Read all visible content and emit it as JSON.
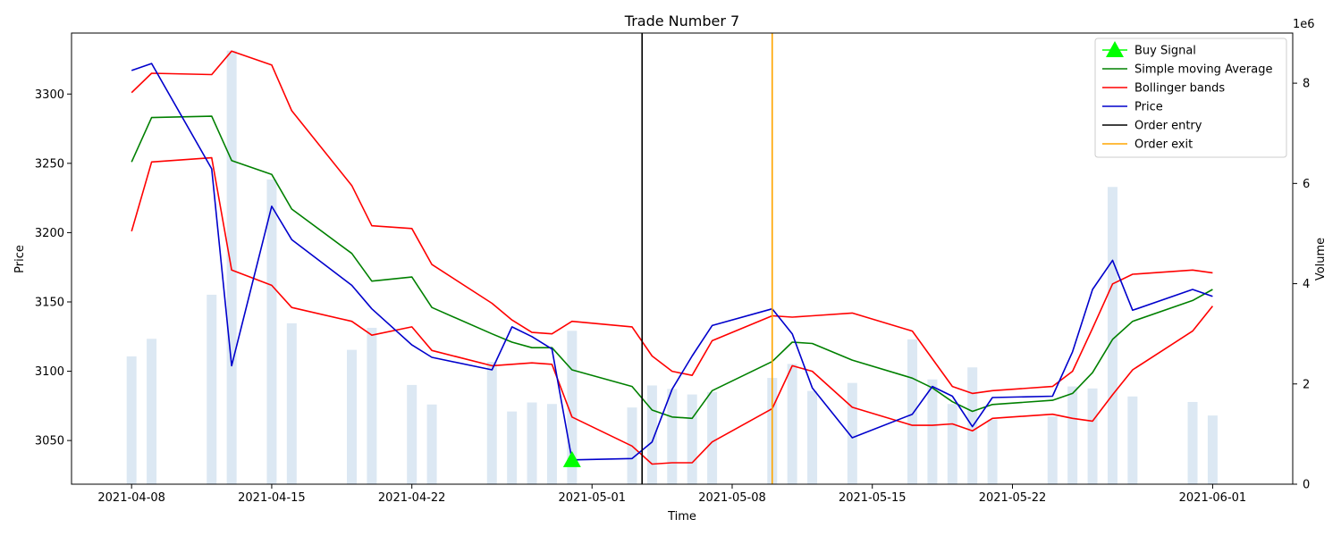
{
  "chart_data": {
    "type": "line",
    "title": "Trade Number 7",
    "xlabel": "Time",
    "ylabel": "Price",
    "y2label": "Volume",
    "y2_offset_label": "1e6",
    "xlim": [
      "2021-04-05",
      "2021-06-05"
    ],
    "ylim": [
      3018.5,
      3344
    ],
    "y2lim": [
      0,
      9000000
    ],
    "x_ticks": [
      "2021-04-08",
      "2021-04-15",
      "2021-04-22",
      "2021-05-01",
      "2021-05-08",
      "2021-05-15",
      "2021-05-22",
      "2021-06-01"
    ],
    "y_ticks": [
      3050,
      3100,
      3150,
      3200,
      3250,
      3300
    ],
    "y2_ticks": [
      0,
      2000000,
      4000000,
      6000000,
      8000000
    ],
    "y2_tick_labels": [
      "0",
      "2",
      "4",
      "6",
      "8"
    ],
    "grid": false,
    "legend_position": "top-right",
    "colors": {
      "price": "#0000cc",
      "sma": "#008000",
      "bollinger": "#ff0000",
      "volume": "#dce8f3",
      "buy": "#00ff00",
      "entry": "#000000",
      "exit": "#ffa500"
    },
    "legend": [
      {
        "label": "Buy Signal",
        "key": "buy",
        "kind": "marker"
      },
      {
        "label": "Simple moving Average",
        "key": "sma",
        "kind": "line"
      },
      {
        "label": "Bollinger bands",
        "key": "bollinger",
        "kind": "line"
      },
      {
        "label": "Price",
        "key": "price",
        "kind": "line"
      },
      {
        "label": "Order entry",
        "key": "entry",
        "kind": "line"
      },
      {
        "label": "Order exit",
        "key": "exit",
        "kind": "line"
      }
    ],
    "dates": [
      "2021-04-08",
      "2021-04-09",
      "2021-04-12",
      "2021-04-13",
      "2021-04-15",
      "2021-04-16",
      "2021-04-19",
      "2021-04-20",
      "2021-04-22",
      "2021-04-23",
      "2021-04-26",
      "2021-04-27",
      "2021-04-28",
      "2021-04-29",
      "2021-04-30",
      "2021-05-03",
      "2021-05-04",
      "2021-05-05",
      "2021-05-06",
      "2021-05-07",
      "2021-05-10",
      "2021-05-11",
      "2021-05-12",
      "2021-05-14",
      "2021-05-17",
      "2021-05-18",
      "2021-05-19",
      "2021-05-20",
      "2021-05-21",
      "2021-05-24",
      "2021-05-25",
      "2021-05-26",
      "2021-05-27",
      "2021-05-28",
      "2021-05-31",
      "2021-06-01"
    ],
    "series": [
      {
        "name": "Price",
        "key": "price",
        "values": [
          3317,
          3322,
          3246,
          3104,
          3219,
          3195,
          3162,
          3145,
          3119,
          3110,
          3101,
          3132,
          3125,
          3116,
          3036,
          3037,
          3049,
          3087,
          3111,
          3133,
          3145,
          3127,
          3088,
          3052,
          3069,
          3089,
          3082,
          3060,
          3081,
          3082,
          3114,
          3159,
          3180,
          3144,
          3159,
          3154
        ]
      },
      {
        "name": "Simple moving Average",
        "key": "sma",
        "values": [
          3251,
          3283,
          3284,
          3252,
          3242,
          3217,
          3185,
          3165,
          3168,
          3146,
          3127,
          3121,
          3117,
          3117,
          3101,
          3089,
          3072,
          3067,
          3066,
          3086,
          3107,
          3121,
          3120,
          3108,
          3095,
          3088,
          3078,
          3071,
          3076,
          3079,
          3084,
          3099,
          3123,
          3136,
          3151,
          3159
        ]
      },
      {
        "name": "Bollinger bands",
        "key": "bollinger_upper",
        "values": [
          3301,
          3315,
          3314,
          3331,
          3321,
          3288,
          3234,
          3205,
          3203,
          3177,
          3149,
          3137,
          3128,
          3127,
          3136,
          3132,
          3111,
          3100,
          3097,
          3122,
          3140,
          3139,
          3140,
          3142,
          3129,
          3109,
          3089,
          3084,
          3086,
          3089,
          3100,
          3131,
          3163,
          3170,
          3173,
          3171
        ]
      },
      {
        "name": "Bollinger bands",
        "key": "bollinger_lower",
        "values": [
          3201,
          3251,
          3254,
          3173,
          3162,
          3146,
          3136,
          3126,
          3132,
          3115,
          3104,
          3105,
          3106,
          3105,
          3067,
          3046,
          3033,
          3034,
          3034,
          3049,
          3073,
          3104,
          3100,
          3074,
          3061,
          3061,
          3062,
          3057,
          3066,
          3069,
          3066,
          3064,
          3083,
          3101,
          3129,
          3147
        ]
      }
    ],
    "volume": {
      "dates": [
        "2021-04-08",
        "2021-04-09",
        "2021-04-12",
        "2021-04-13",
        "2021-04-15",
        "2021-04-16",
        "2021-04-19",
        "2021-04-20",
        "2021-04-22",
        "2021-04-23",
        "2021-04-26",
        "2021-04-27",
        "2021-04-28",
        "2021-04-29",
        "2021-04-30",
        "2021-05-03",
        "2021-05-04",
        "2021-05-05",
        "2021-05-06",
        "2021-05-07",
        "2021-05-10",
        "2021-05-11",
        "2021-05-12",
        "2021-05-14",
        "2021-05-17",
        "2021-05-18",
        "2021-05-19",
        "2021-05-20",
        "2021-05-21",
        "2021-05-24",
        "2021-05-25",
        "2021-05-26",
        "2021-05-27",
        "2021-05-28",
        "2021-05-31",
        "2021-06-01"
      ],
      "values": [
        2550000,
        2900000,
        3780000,
        8650000,
        6080000,
        3210000,
        2680000,
        3120000,
        1980000,
        1590000,
        2440000,
        1450000,
        1630000,
        1600000,
        3060000,
        1530000,
        1970000,
        1900000,
        1790000,
        1840000,
        2120000,
        2400000,
        1860000,
        2020000,
        2890000,
        2090000,
        1600000,
        2330000,
        1290000,
        1350000,
        1950000,
        1910000,
        5930000,
        1750000,
        1640000,
        1370000
      ]
    },
    "buy_signal": {
      "date": "2021-04-30",
      "value": 3036
    },
    "order_entry": "2021-05-03 12:00",
    "order_exit": "2021-05-10"
  }
}
